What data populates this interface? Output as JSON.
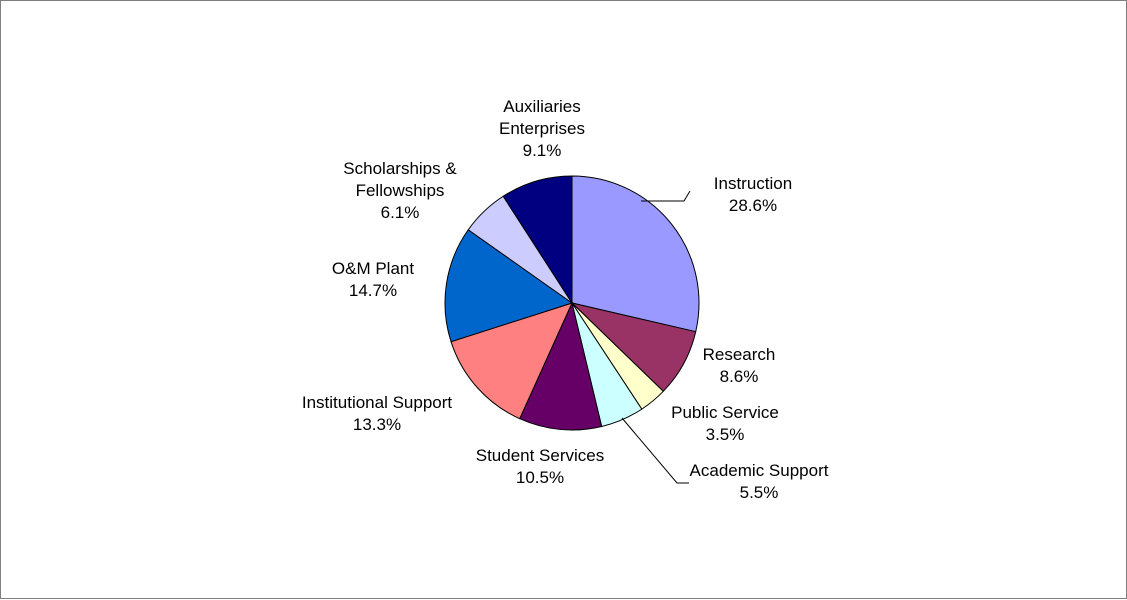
{
  "chart_data": {
    "type": "pie",
    "title": "",
    "slices": [
      {
        "label": [
          "Instruction"
        ],
        "percent_text": "28.6%",
        "value": 28.6,
        "color": "#9999ff"
      },
      {
        "label": [
          "Research"
        ],
        "percent_text": "8.6%",
        "value": 8.6,
        "color": "#993366"
      },
      {
        "label": [
          "Public Service"
        ],
        "percent_text": "3.5%",
        "value": 3.5,
        "color": "#ffffcc"
      },
      {
        "label": [
          "Academic Support"
        ],
        "percent_text": "5.5%",
        "value": 5.5,
        "color": "#ccffff"
      },
      {
        "label": [
          "Student Services"
        ],
        "percent_text": "10.5%",
        "value": 10.5,
        "color": "#660066"
      },
      {
        "label": [
          "Institutional Support"
        ],
        "percent_text": "13.3%",
        "value": 13.3,
        "color": "#ff8080"
      },
      {
        "label": [
          "O&M Plant"
        ],
        "percent_text": "14.7%",
        "value": 14.7,
        "color": "#0066cc"
      },
      {
        "label": [
          "Scholarships &",
          "Fellowships"
        ],
        "percent_text": "6.1%",
        "value": 6.1,
        "color": "#ccccff"
      },
      {
        "label": [
          "Auxiliaries",
          "Enterprises"
        ],
        "percent_text": "9.1%",
        "value": 9.1,
        "color": "#000080"
      }
    ]
  }
}
